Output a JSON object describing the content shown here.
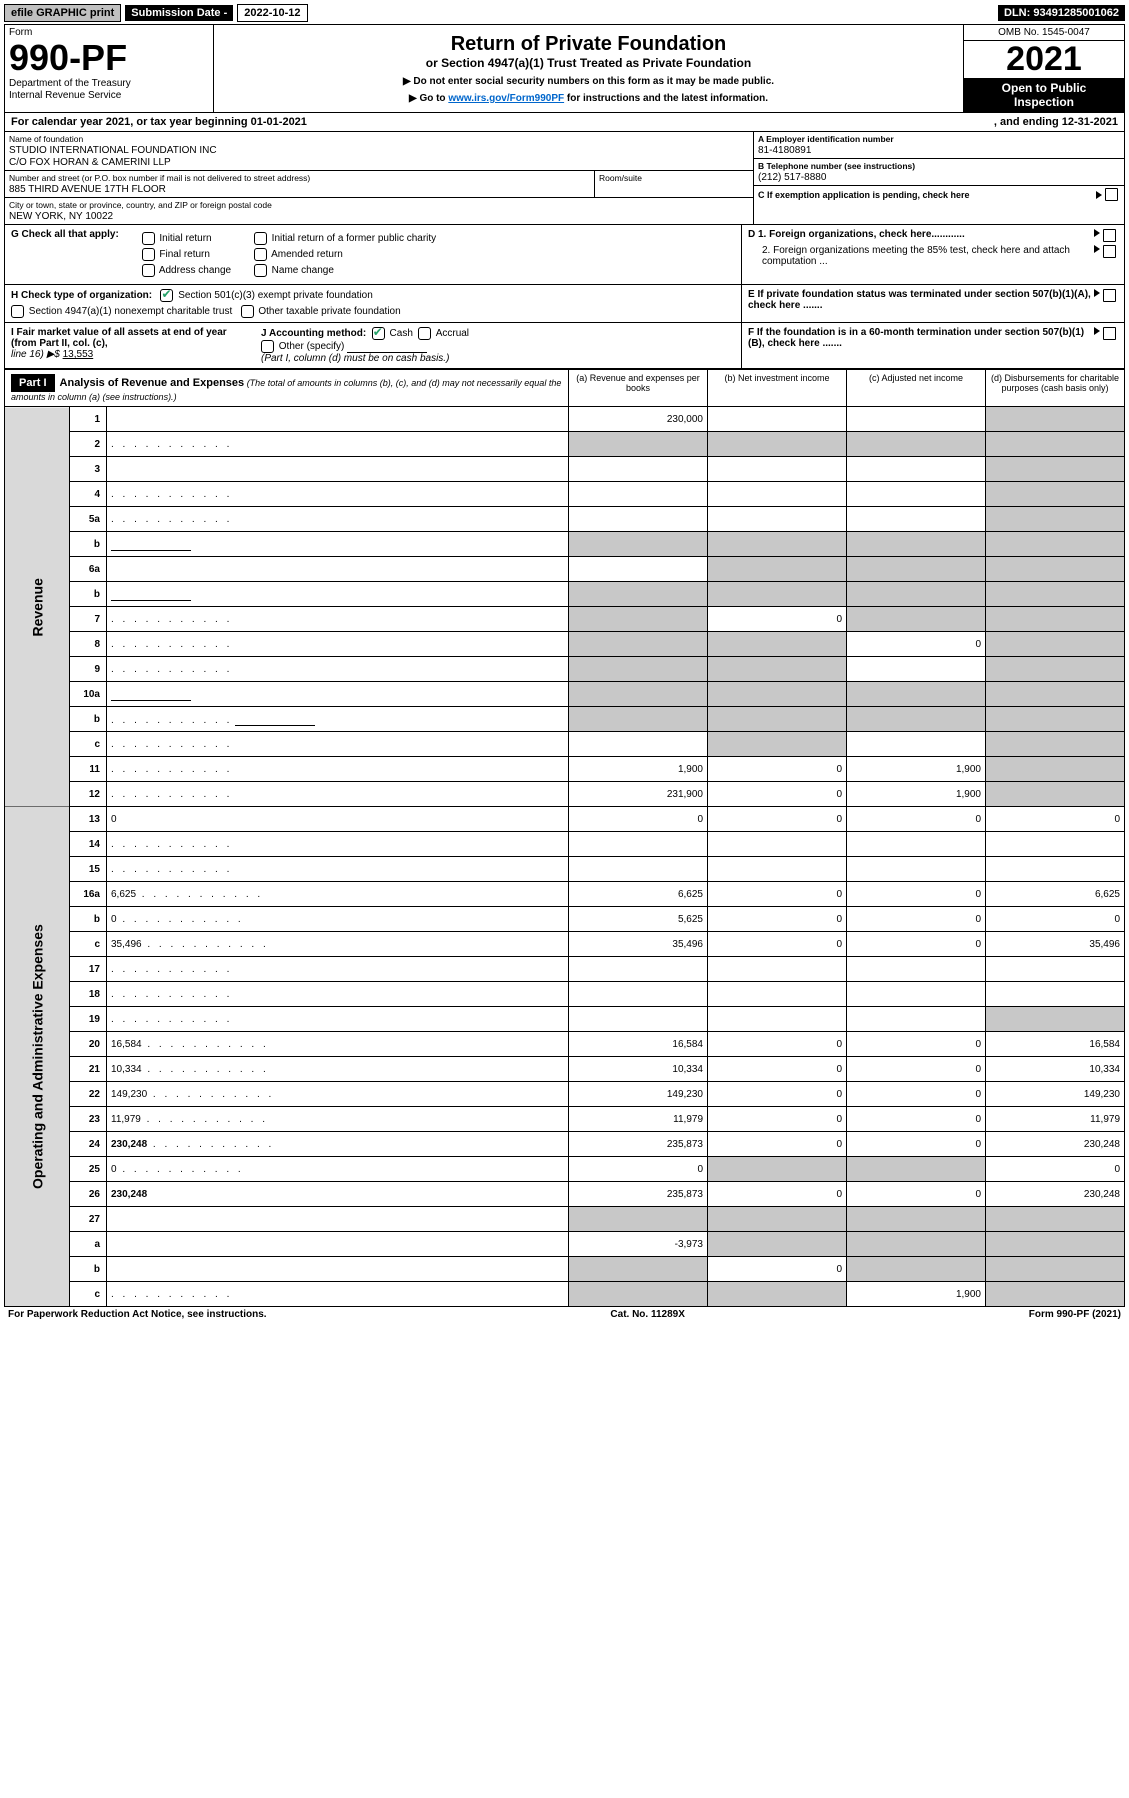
{
  "topbar": {
    "efile": "efile GRAPHIC print",
    "submission_label": "Submission Date - ",
    "submission_date": "2022-10-12",
    "dln_label": "DLN: ",
    "dln": "93491285001062"
  },
  "header": {
    "form_label": "Form",
    "form_number": "990-PF",
    "dept1": "Department of the Treasury",
    "dept2": "Internal Revenue Service",
    "title": "Return of Private Foundation",
    "subtitle": "or Section 4947(a)(1) Trust Treated as Private Foundation",
    "instr1": "▶ Do not enter social security numbers on this form as it may be made public.",
    "instr2_pre": "▶ Go to ",
    "instr2_link": "www.irs.gov/Form990PF",
    "instr2_post": " for instructions and the latest information.",
    "omb": "OMB No. 1545-0047",
    "year": "2021",
    "public1": "Open to Public",
    "public2": "Inspection"
  },
  "cal": {
    "left": "For calendar year 2021, or tax year beginning 01-01-2021",
    "right": ", and ending 12-31-2021"
  },
  "foundation": {
    "name_lbl": "Name of foundation",
    "name1": "STUDIO INTERNATIONAL FOUNDATION INC",
    "name2": "C/O FOX HORAN & CAMERINI LLP",
    "ein_lbl": "A Employer identification number",
    "ein": "81-4180891",
    "addr_lbl": "Number and street (or P.O. box number if mail is not delivered to street address)",
    "addr": "885 THIRD AVENUE 17TH FLOOR",
    "room_lbl": "Room/suite",
    "phone_lbl": "B Telephone number (see instructions)",
    "phone": "(212) 517-8880",
    "city_lbl": "City or town, state or province, country, and ZIP or foreign postal code",
    "city": "NEW YORK, NY  10022",
    "c_lbl": "C If exemption application is pending, check here"
  },
  "g": {
    "label": "G Check all that apply:",
    "initial": "Initial return",
    "final": "Final return",
    "address": "Address change",
    "initial_former": "Initial return of a former public charity",
    "amended": "Amended return",
    "name_change": "Name change",
    "d1": "D 1. Foreign organizations, check here............",
    "d2": "2. Foreign organizations meeting the 85% test, check here and attach computation ...",
    "e": "E  If private foundation status was terminated under section 507(b)(1)(A), check here .......",
    "f": "F  If the foundation is in a 60-month termination under section 507(b)(1)(B), check here ......."
  },
  "h": {
    "label": "H Check type of organization:",
    "opt1": "Section 501(c)(3) exempt private foundation",
    "opt2": "Section 4947(a)(1) nonexempt charitable trust",
    "opt3": "Other taxable private foundation"
  },
  "i": {
    "label": "I Fair market value of all assets at end of year (from Part II, col. (c),",
    "line16": "line 16) ▶$ ",
    "value": "13,553",
    "j_label": "J Accounting method:",
    "cash": "Cash",
    "accrual": "Accrual",
    "other": "Other (specify)",
    "note": "(Part I, column (d) must be on cash basis.)"
  },
  "part1": {
    "tag": "Part I",
    "title": "Analysis of Revenue and Expenses",
    "sub": "(The total of amounts in columns (b), (c), and (d) may not necessarily equal the amounts in column (a) (see instructions).)",
    "cols": {
      "a": "(a)  Revenue and expenses per books",
      "b": "(b)  Net investment income",
      "c": "(c)  Adjusted net income",
      "d": "(d)  Disbursements for charitable purposes (cash basis only)"
    }
  },
  "sidebars": {
    "rev": "Revenue",
    "oae": "Operating and Administrative Expenses"
  },
  "rows": [
    {
      "n": "1",
      "d": "",
      "a": "230,000",
      "b": "",
      "c": "",
      "d_grey": true
    },
    {
      "n": "2",
      "d": "",
      "dots": true,
      "a": "",
      "b": "",
      "c": "",
      "all_grey": true
    },
    {
      "n": "3",
      "d": "",
      "a": "",
      "b": "",
      "c": "",
      "d_grey": true
    },
    {
      "n": "4",
      "d": "",
      "dots": true,
      "a": "",
      "b": "",
      "c": "",
      "d_grey": true
    },
    {
      "n": "5a",
      "d": "",
      "dots": true,
      "a": "",
      "b": "",
      "c": "",
      "d_grey": true
    },
    {
      "n": "b",
      "d": "",
      "input": true,
      "a": "",
      "b": "",
      "c": "",
      "abcd_grey": true
    },
    {
      "n": "6a",
      "d": "",
      "a": "",
      "b": "",
      "c": "",
      "bcd_grey": true
    },
    {
      "n": "b",
      "d": "",
      "input": true,
      "a": "",
      "b": "",
      "c": "",
      "abcd_grey": true
    },
    {
      "n": "7",
      "d": "",
      "dots": true,
      "a": "",
      "b": "0",
      "c": "",
      "a_grey": true,
      "cd_grey": true
    },
    {
      "n": "8",
      "d": "",
      "dots": true,
      "a": "",
      "b": "",
      "c": "0",
      "ab_grey": true,
      "d_grey": true
    },
    {
      "n": "9",
      "d": "",
      "dots": true,
      "a": "",
      "b": "",
      "c": "",
      "ab_grey": true,
      "d_grey": true
    },
    {
      "n": "10a",
      "d": "",
      "input": true,
      "a": "",
      "b": "",
      "c": "",
      "abcd_grey": true
    },
    {
      "n": "b",
      "d": "",
      "dots": true,
      "input": true,
      "a": "",
      "b": "",
      "c": "",
      "abcd_grey": true
    },
    {
      "n": "c",
      "d": "",
      "dots": true,
      "a": "",
      "b": "",
      "c": "",
      "b_grey": true,
      "d_grey": true
    },
    {
      "n": "11",
      "d": "",
      "dots": true,
      "a": "1,900",
      "b": "0",
      "c": "1,900",
      "d_grey": true
    },
    {
      "n": "12",
      "d": "",
      "dots": true,
      "bold": true,
      "a": "231,900",
      "b": "0",
      "c": "1,900",
      "d_grey": true
    },
    {
      "n": "13",
      "d": "0",
      "a": "0",
      "b": "0",
      "c": "0"
    },
    {
      "n": "14",
      "d": "",
      "dots": true,
      "a": "",
      "b": "",
      "c": ""
    },
    {
      "n": "15",
      "d": "",
      "dots": true,
      "a": "",
      "b": "",
      "c": ""
    },
    {
      "n": "16a",
      "d": "6,625",
      "dots": true,
      "a": "6,625",
      "b": "0",
      "c": "0"
    },
    {
      "n": "b",
      "d": "0",
      "dots": true,
      "a": "5,625",
      "b": "0",
      "c": "0"
    },
    {
      "n": "c",
      "d": "35,496",
      "dots": true,
      "a": "35,496",
      "b": "0",
      "c": "0"
    },
    {
      "n": "17",
      "d": "",
      "dots": true,
      "a": "",
      "b": "",
      "c": ""
    },
    {
      "n": "18",
      "d": "",
      "dots": true,
      "a": "",
      "b": "",
      "c": ""
    },
    {
      "n": "19",
      "d": "",
      "dots": true,
      "a": "",
      "b": "",
      "c": "",
      "d_grey": true
    },
    {
      "n": "20",
      "d": "16,584",
      "dots": true,
      "a": "16,584",
      "b": "0",
      "c": "0"
    },
    {
      "n": "21",
      "d": "10,334",
      "dots": true,
      "a": "10,334",
      "b": "0",
      "c": "0"
    },
    {
      "n": "22",
      "d": "149,230",
      "dots": true,
      "a": "149,230",
      "b": "0",
      "c": "0"
    },
    {
      "n": "23",
      "d": "11,979",
      "dots": true,
      "a": "11,979",
      "b": "0",
      "c": "0"
    },
    {
      "n": "24",
      "d": "230,248",
      "dots": true,
      "bold": true,
      "a": "235,873",
      "b": "0",
      "c": "0"
    },
    {
      "n": "25",
      "d": "0",
      "dots": true,
      "a": "0",
      "b": "",
      "c": "",
      "bc_grey": true
    },
    {
      "n": "26",
      "d": "230,248",
      "bold": true,
      "a": "235,873",
      "b": "0",
      "c": "0"
    },
    {
      "n": "27",
      "d": "",
      "a": "",
      "b": "",
      "c": "",
      "abcd_grey": true
    },
    {
      "n": "a",
      "d": "",
      "bold": true,
      "a": "-3,973",
      "b": "",
      "c": "",
      "bcd_grey": true
    },
    {
      "n": "b",
      "d": "",
      "bold": true,
      "a": "",
      "b": "0",
      "c": "",
      "a_grey": true,
      "cd_grey": true
    },
    {
      "n": "c",
      "d": "",
      "dots": true,
      "bold": true,
      "a": "",
      "b": "",
      "c": "1,900",
      "ab_grey": true,
      "d_grey": true
    }
  ],
  "footer": {
    "left": "For Paperwork Reduction Act Notice, see instructions.",
    "mid": "Cat. No. 11289X",
    "right": "Form 990-PF (2021)"
  }
}
